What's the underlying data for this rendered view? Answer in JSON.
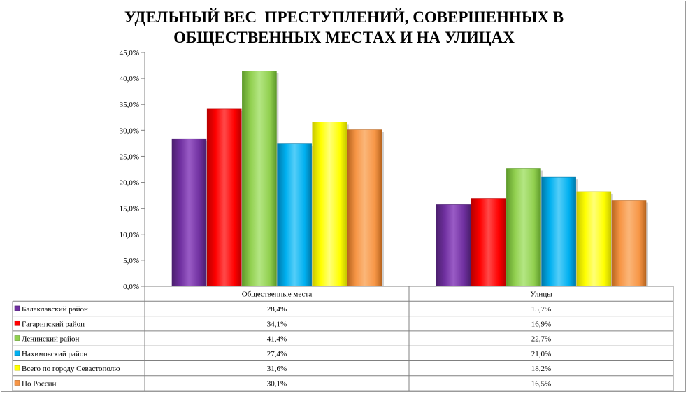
{
  "chart_data": {
    "type": "bar",
    "title": [
      "УДЕЛЬНЫЙ ВЕС  ПРЕСТУПЛЕНИЙ, СОВЕРШЕННЫХ В",
      "ОБЩЕСТВЕННЫХ МЕСТАХ И НА УЛИЦАХ"
    ],
    "categories": [
      "Общественные места",
      "Улицы"
    ],
    "ylim": [
      0,
      45
    ],
    "yticks": [
      0,
      5,
      10,
      15,
      20,
      25,
      30,
      35,
      40,
      45
    ],
    "ytick_labels": [
      "0,0%",
      "5,0%",
      "10,0%",
      "15,0%",
      "20,0%",
      "25,0%",
      "30,0%",
      "35,0%",
      "40,0%",
      "45,0%"
    ],
    "grid": false,
    "legend": "data-table-below",
    "series": [
      {
        "name": "Балаклавский район",
        "values": [
          28.4,
          15.7
        ],
        "labels": [
          "28,4%",
          "15,7%"
        ],
        "color": "#7030A0",
        "dark": "#4B1F6E",
        "light": "#9A5CC6"
      },
      {
        "name": "Гагаринский район",
        "values": [
          34.1,
          16.9
        ],
        "labels": [
          "34,1%",
          "16,9%"
        ],
        "color": "#FF0000",
        "dark": "#B80000",
        "light": "#FF4A4A"
      },
      {
        "name": "Ленинский район",
        "values": [
          41.4,
          22.7
        ],
        "labels": [
          "41,4%",
          "22,7%"
        ],
        "color": "#92D050",
        "dark": "#5E9A2A",
        "light": "#B4E684"
      },
      {
        "name": "Нахимовский район",
        "values": [
          27.4,
          21.0
        ],
        "labels": [
          "27,4%",
          "21,0%"
        ],
        "color": "#00B0F0",
        "dark": "#0078A8",
        "light": "#55CEF8"
      },
      {
        "name": "Всего по городу Севастополю",
        "values": [
          31.6,
          18.2
        ],
        "labels": [
          "31,6%",
          "18,2%"
        ],
        "color": "#FFFF00",
        "dark": "#C8C800",
        "light": "#FFFF7A"
      },
      {
        "name": "По России",
        "values": [
          30.1,
          16.5
        ],
        "labels": [
          "30,1%",
          "16,5%"
        ],
        "color": "#F79646",
        "dark": "#B8651F",
        "light": "#FBB679"
      }
    ]
  }
}
